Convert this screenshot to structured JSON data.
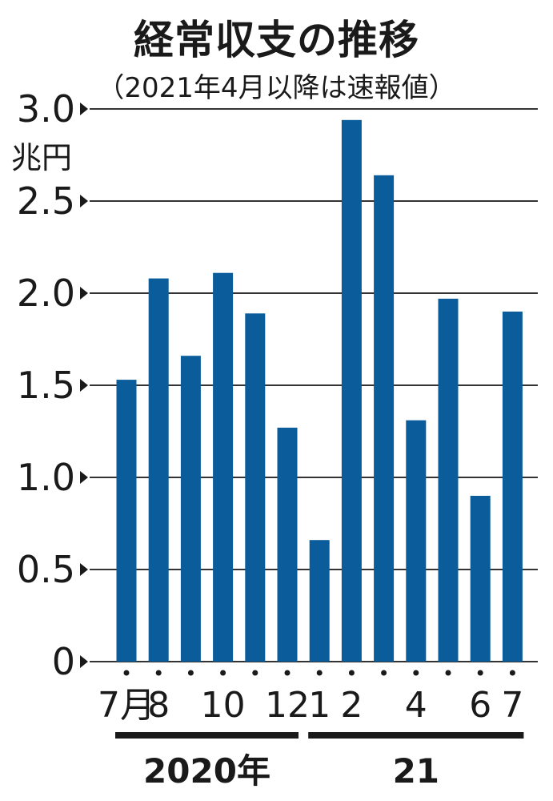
{
  "chart_data": {
    "type": "bar",
    "title": "経常収支の推移",
    "subtitle": "（2021年4月以降は速報値）",
    "ylabel": "兆円",
    "ylim": [
      0,
      3.0
    ],
    "yticks": [
      "3.0",
      "2.5",
      "2.0",
      "1.5",
      "1.0",
      "0.5",
      "0"
    ],
    "ytick_values": [
      3.0,
      2.5,
      2.0,
      1.5,
      1.0,
      0.5,
      0
    ],
    "grid": true,
    "bar_color": "#0a5d9a",
    "categories": [
      "2020-07",
      "2020-08",
      "2020-09",
      "2020-10",
      "2020-11",
      "2020-12",
      "2021-01",
      "2021-02",
      "2021-03",
      "2021-04",
      "2021-05",
      "2021-06",
      "2021-07"
    ],
    "category_labels": [
      "7月",
      "8",
      "",
      "10",
      "",
      "12",
      "1",
      "2",
      "",
      "4",
      "",
      "6",
      "7"
    ],
    "values": [
      1.53,
      2.08,
      1.66,
      2.11,
      1.89,
      1.27,
      0.66,
      2.94,
      2.64,
      1.31,
      1.97,
      0.9,
      1.9
    ],
    "year_groups": [
      {
        "label": "2020年",
        "start": 0,
        "end": 5
      },
      {
        "label": "21",
        "start": 6,
        "end": 12
      }
    ]
  }
}
